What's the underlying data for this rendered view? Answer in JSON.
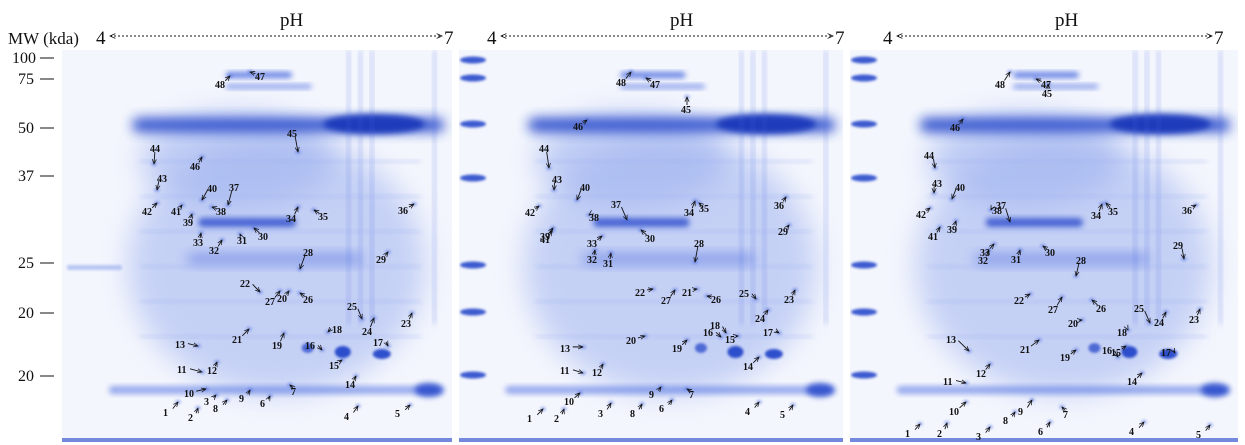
{
  "axis": {
    "mw_title": "MW (kda)",
    "ph_label": "pH",
    "ph_left": "4",
    "ph_right": "7",
    "mw_ticks": [
      "100",
      "75",
      "50",
      "37",
      "25",
      "20",
      "20"
    ]
  },
  "panels": [
    {
      "spots": [
        {
          "l": "1"
        },
        {
          "l": "2"
        },
        {
          "l": "3"
        },
        {
          "l": "4"
        },
        {
          "l": "5"
        },
        {
          "l": "6"
        },
        {
          "l": "7"
        },
        {
          "l": "8"
        },
        {
          "l": "9"
        },
        {
          "l": "10"
        },
        {
          "l": "11"
        },
        {
          "l": "12"
        },
        {
          "l": "13"
        },
        {
          "l": "14"
        },
        {
          "l": "15"
        },
        {
          "l": "16"
        },
        {
          "l": "17"
        },
        {
          "l": "18"
        },
        {
          "l": "19"
        },
        {
          "l": "20"
        },
        {
          "l": "21"
        },
        {
          "l": "22"
        },
        {
          "l": "23"
        },
        {
          "l": "24"
        },
        {
          "l": "25"
        },
        {
          "l": "26"
        },
        {
          "l": "27"
        },
        {
          "l": "28"
        },
        {
          "l": "29"
        },
        {
          "l": "30"
        },
        {
          "l": "31"
        },
        {
          "l": "32"
        },
        {
          "l": "33"
        },
        {
          "l": "34"
        },
        {
          "l": "35"
        },
        {
          "l": "36"
        },
        {
          "l": "37"
        },
        {
          "l": "38"
        },
        {
          "l": "39"
        },
        {
          "l": "40"
        },
        {
          "l": "41"
        },
        {
          "l": "42"
        },
        {
          "l": "43"
        },
        {
          "l": "44"
        },
        {
          "l": "45"
        },
        {
          "l": "46"
        },
        {
          "l": "47"
        },
        {
          "l": "48"
        }
      ]
    },
    {
      "spots": [
        {
          "l": "1"
        },
        {
          "l": "2"
        },
        {
          "l": "3"
        },
        {
          "l": "4"
        },
        {
          "l": "5"
        },
        {
          "l": "6"
        },
        {
          "l": "7"
        },
        {
          "l": "8"
        },
        {
          "l": "9"
        },
        {
          "l": "10"
        },
        {
          "l": "11"
        },
        {
          "l": "12"
        },
        {
          "l": "13"
        },
        {
          "l": "14"
        },
        {
          "l": "15"
        },
        {
          "l": "16"
        },
        {
          "l": "17"
        },
        {
          "l": "18"
        },
        {
          "l": "19"
        },
        {
          "l": "20"
        },
        {
          "l": "21"
        },
        {
          "l": "22"
        },
        {
          "l": "23"
        },
        {
          "l": "24"
        },
        {
          "l": "25"
        },
        {
          "l": "26"
        },
        {
          "l": "27"
        },
        {
          "l": "28"
        },
        {
          "l": "29"
        },
        {
          "l": "30"
        },
        {
          "l": "31"
        },
        {
          "l": "32"
        },
        {
          "l": "33"
        },
        {
          "l": "34"
        },
        {
          "l": "35"
        },
        {
          "l": "36"
        },
        {
          "l": "37"
        },
        {
          "l": "38"
        },
        {
          "l": "39"
        },
        {
          "l": "40"
        },
        {
          "l": "41"
        },
        {
          "l": "42"
        },
        {
          "l": "43"
        },
        {
          "l": "44"
        },
        {
          "l": "45"
        },
        {
          "l": "46"
        },
        {
          "l": "47"
        },
        {
          "l": "48"
        }
      ]
    },
    {
      "spots": [
        {
          "l": "1"
        },
        {
          "l": "2"
        },
        {
          "l": "3"
        },
        {
          "l": "4"
        },
        {
          "l": "5"
        },
        {
          "l": "6"
        },
        {
          "l": "7"
        },
        {
          "l": "8"
        },
        {
          "l": "9"
        },
        {
          "l": "10"
        },
        {
          "l": "11"
        },
        {
          "l": "12"
        },
        {
          "l": "13"
        },
        {
          "l": "14"
        },
        {
          "l": "15"
        },
        {
          "l": "16"
        },
        {
          "l": "17"
        },
        {
          "l": "18"
        },
        {
          "l": "19"
        },
        {
          "l": "20"
        },
        {
          "l": "21"
        },
        {
          "l": "22"
        },
        {
          "l": "23"
        },
        {
          "l": "24"
        },
        {
          "l": "25"
        },
        {
          "l": "26"
        },
        {
          "l": "27"
        },
        {
          "l": "28"
        },
        {
          "l": "29"
        },
        {
          "l": "30"
        },
        {
          "l": "31"
        },
        {
          "l": "32"
        },
        {
          "l": "33"
        },
        {
          "l": "34"
        },
        {
          "l": "35"
        },
        {
          "l": "36"
        },
        {
          "l": "37"
        },
        {
          "l": "38"
        },
        {
          "l": "39"
        },
        {
          "l": "40"
        },
        {
          "l": "41"
        },
        {
          "l": "42"
        },
        {
          "l": "43"
        },
        {
          "l": "44"
        },
        {
          "l": "45"
        },
        {
          "l": "46"
        },
        {
          "l": "47"
        },
        {
          "l": "48"
        }
      ]
    }
  ],
  "colors": {
    "gel_background": "#f4f6fd",
    "stain_dark": "#1e3fc8",
    "stain_mid": "#4a6ae0",
    "stain_light": "#9fb2ef",
    "label_text": "#111111"
  }
}
